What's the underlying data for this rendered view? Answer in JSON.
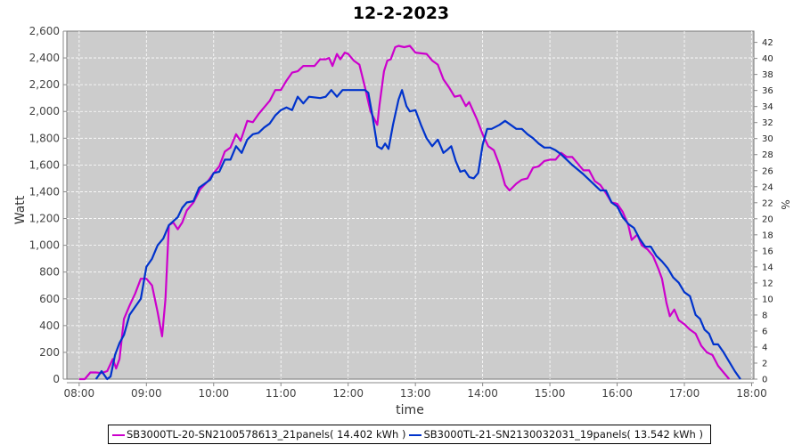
{
  "chart_data": {
    "type": "line",
    "title": "12-2-2023",
    "xlabel": "time",
    "ylabel": "Watt",
    "ylabel_right": "%",
    "xlim": [
      "07:49",
      "18:02"
    ],
    "ylim": [
      0,
      2600
    ],
    "ylim_right": [
      0,
      43.4
    ],
    "x_ticks": [
      "08:00",
      "09:00",
      "10:00",
      "11:00",
      "12:00",
      "13:00",
      "14:00",
      "15:00",
      "16:00",
      "17:00",
      "18:00"
    ],
    "y_ticks": [
      "0",
      "200",
      "400",
      "600",
      "800",
      "1,000",
      "1,200",
      "1,400",
      "1,600",
      "1,800",
      "2,000",
      "2,200",
      "2,400",
      "2,600"
    ],
    "y_ticks_right": [
      "0",
      "2",
      "4",
      "6",
      "8",
      "10",
      "12",
      "14",
      "16",
      "18",
      "20",
      "22",
      "24",
      "26",
      "28",
      "30",
      "32",
      "34",
      "36",
      "38",
      "40",
      "42"
    ],
    "grid": true,
    "background": "#cccccc",
    "legend_position": "bottom",
    "series": [
      {
        "name": "SB3000TL-20-SN2100578613_21panels( 14.402 kWh )",
        "color": "#cc00cc",
        "points": [
          [
            "08:00",
            0
          ],
          [
            "08:05",
            0
          ],
          [
            "08:10",
            50
          ],
          [
            "08:15",
            50
          ],
          [
            "08:20",
            45
          ],
          [
            "08:25",
            60
          ],
          [
            "08:30",
            150
          ],
          [
            "08:33",
            80
          ],
          [
            "08:36",
            150
          ],
          [
            "08:40",
            450
          ],
          [
            "08:45",
            550
          ],
          [
            "08:50",
            640
          ],
          [
            "08:55",
            750
          ],
          [
            "09:00",
            750
          ],
          [
            "09:05",
            700
          ],
          [
            "09:10",
            500
          ],
          [
            "09:14",
            320
          ],
          [
            "09:17",
            600
          ],
          [
            "09:20",
            1150
          ],
          [
            "09:24",
            1170
          ],
          [
            "09:28",
            1120
          ],
          [
            "09:32",
            1170
          ],
          [
            "09:36",
            1260
          ],
          [
            "09:42",
            1320
          ],
          [
            "09:48",
            1420
          ],
          [
            "09:55",
            1480
          ],
          [
            "10:00",
            1540
          ],
          [
            "10:05",
            1590
          ],
          [
            "10:10",
            1700
          ],
          [
            "10:15",
            1730
          ],
          [
            "10:20",
            1830
          ],
          [
            "10:24",
            1780
          ],
          [
            "10:30",
            1930
          ],
          [
            "10:35",
            1920
          ],
          [
            "10:40",
            1980
          ],
          [
            "10:45",
            2030
          ],
          [
            "10:50",
            2080
          ],
          [
            "10:55",
            2160
          ],
          [
            "11:00",
            2160
          ],
          [
            "11:05",
            2230
          ],
          [
            "11:10",
            2290
          ],
          [
            "11:15",
            2300
          ],
          [
            "11:20",
            2340
          ],
          [
            "11:30",
            2340
          ],
          [
            "11:35",
            2390
          ],
          [
            "11:40",
            2390
          ],
          [
            "11:43",
            2400
          ],
          [
            "11:46",
            2340
          ],
          [
            "11:50",
            2430
          ],
          [
            "11:53",
            2390
          ],
          [
            "11:57",
            2440
          ],
          [
            "12:00",
            2430
          ],
          [
            "12:05",
            2380
          ],
          [
            "12:10",
            2350
          ],
          [
            "12:15",
            2180
          ],
          [
            "12:20",
            2000
          ],
          [
            "12:23",
            1950
          ],
          [
            "12:26",
            1900
          ],
          [
            "12:28",
            2050
          ],
          [
            "12:32",
            2300
          ],
          [
            "12:35",
            2380
          ],
          [
            "12:38",
            2390
          ],
          [
            "12:42",
            2480
          ],
          [
            "12:45",
            2490
          ],
          [
            "12:50",
            2480
          ],
          [
            "12:55",
            2490
          ],
          [
            "13:00",
            2440
          ],
          [
            "13:10",
            2430
          ],
          [
            "13:15",
            2380
          ],
          [
            "13:20",
            2350
          ],
          [
            "13:25",
            2240
          ],
          [
            "13:30",
            2180
          ],
          [
            "13:35",
            2110
          ],
          [
            "13:40",
            2120
          ],
          [
            "13:45",
            2040
          ],
          [
            "13:48",
            2070
          ],
          [
            "13:55",
            1940
          ],
          [
            "14:00",
            1830
          ],
          [
            "14:05",
            1740
          ],
          [
            "14:10",
            1710
          ],
          [
            "14:15",
            1600
          ],
          [
            "14:20",
            1450
          ],
          [
            "14:24",
            1410
          ],
          [
            "14:30",
            1460
          ],
          [
            "14:35",
            1490
          ],
          [
            "14:40",
            1500
          ],
          [
            "14:45",
            1580
          ],
          [
            "14:50",
            1590
          ],
          [
            "14:55",
            1630
          ],
          [
            "15:00",
            1640
          ],
          [
            "15:05",
            1640
          ],
          [
            "15:10",
            1690
          ],
          [
            "15:15",
            1660
          ],
          [
            "15:20",
            1660
          ],
          [
            "15:25",
            1610
          ],
          [
            "15:30",
            1560
          ],
          [
            "15:35",
            1560
          ],
          [
            "15:40",
            1480
          ],
          [
            "15:45",
            1450
          ],
          [
            "15:50",
            1390
          ],
          [
            "15:55",
            1320
          ],
          [
            "16:00",
            1310
          ],
          [
            "16:05",
            1250
          ],
          [
            "16:10",
            1150
          ],
          [
            "16:13",
            1040
          ],
          [
            "16:18",
            1080
          ],
          [
            "16:22",
            1000
          ],
          [
            "16:27",
            970
          ],
          [
            "16:32",
            920
          ],
          [
            "16:37",
            820
          ],
          [
            "16:40",
            750
          ],
          [
            "16:44",
            570
          ],
          [
            "16:47",
            470
          ],
          [
            "16:51",
            520
          ],
          [
            "16:55",
            440
          ],
          [
            "17:00",
            410
          ],
          [
            "17:05",
            370
          ],
          [
            "17:10",
            340
          ],
          [
            "17:15",
            250
          ],
          [
            "17:20",
            200
          ],
          [
            "17:25",
            180
          ],
          [
            "17:30",
            100
          ],
          [
            "17:35",
            50
          ],
          [
            "17:40",
            0
          ]
        ]
      },
      {
        "name": "SB3000TL-21-SN2130032031_19panels( 13.542 kWh )",
        "color": "#0033cc",
        "points": [
          [
            "08:15",
            0
          ],
          [
            "08:20",
            60
          ],
          [
            "08:25",
            0
          ],
          [
            "08:28",
            20
          ],
          [
            "08:32",
            180
          ],
          [
            "08:36",
            270
          ],
          [
            "08:40",
            330
          ],
          [
            "08:45",
            480
          ],
          [
            "08:50",
            540
          ],
          [
            "08:55",
            600
          ],
          [
            "09:00",
            840
          ],
          [
            "09:05",
            900
          ],
          [
            "09:10",
            1000
          ],
          [
            "09:15",
            1050
          ],
          [
            "09:20",
            1150
          ],
          [
            "09:24",
            1180
          ],
          [
            "09:28",
            1210
          ],
          [
            "09:32",
            1280
          ],
          [
            "09:36",
            1320
          ],
          [
            "09:42",
            1330
          ],
          [
            "09:47",
            1430
          ],
          [
            "09:52",
            1460
          ],
          [
            "09:57",
            1490
          ],
          [
            "10:00",
            1540
          ],
          [
            "10:05",
            1550
          ],
          [
            "10:10",
            1640
          ],
          [
            "10:15",
            1640
          ],
          [
            "10:20",
            1740
          ],
          [
            "10:25",
            1690
          ],
          [
            "10:30",
            1790
          ],
          [
            "10:35",
            1830
          ],
          [
            "10:40",
            1840
          ],
          [
            "10:45",
            1880
          ],
          [
            "10:50",
            1910
          ],
          [
            "10:55",
            1970
          ],
          [
            "11:00",
            2010
          ],
          [
            "11:05",
            2030
          ],
          [
            "11:10",
            2010
          ],
          [
            "11:15",
            2110
          ],
          [
            "11:20",
            2060
          ],
          [
            "11:25",
            2110
          ],
          [
            "11:35",
            2100
          ],
          [
            "11:40",
            2110
          ],
          [
            "11:45",
            2160
          ],
          [
            "11:50",
            2110
          ],
          [
            "11:55",
            2160
          ],
          [
            "12:15",
            2160
          ],
          [
            "12:18",
            2140
          ],
          [
            "12:22",
            1950
          ],
          [
            "12:26",
            1740
          ],
          [
            "12:30",
            1720
          ],
          [
            "12:33",
            1760
          ],
          [
            "12:36",
            1720
          ],
          [
            "12:40",
            1900
          ],
          [
            "12:45",
            2090
          ],
          [
            "12:48",
            2160
          ],
          [
            "12:52",
            2040
          ],
          [
            "12:55",
            2000
          ],
          [
            "13:00",
            2010
          ],
          [
            "13:05",
            1900
          ],
          [
            "13:10",
            1800
          ],
          [
            "13:15",
            1740
          ],
          [
            "13:20",
            1790
          ],
          [
            "13:25",
            1690
          ],
          [
            "13:28",
            1710
          ],
          [
            "13:32",
            1740
          ],
          [
            "13:36",
            1630
          ],
          [
            "13:40",
            1550
          ],
          [
            "13:44",
            1560
          ],
          [
            "13:48",
            1510
          ],
          [
            "13:52",
            1500
          ],
          [
            "13:56",
            1540
          ],
          [
            "14:00",
            1750
          ],
          [
            "14:04",
            1870
          ],
          [
            "14:08",
            1870
          ],
          [
            "14:15",
            1900
          ],
          [
            "14:20",
            1930
          ],
          [
            "14:25",
            1900
          ],
          [
            "14:30",
            1870
          ],
          [
            "14:35",
            1870
          ],
          [
            "14:40",
            1830
          ],
          [
            "14:45",
            1800
          ],
          [
            "14:50",
            1760
          ],
          [
            "14:55",
            1730
          ],
          [
            "15:00",
            1730
          ],
          [
            "15:05",
            1710
          ],
          [
            "15:10",
            1680
          ],
          [
            "15:20",
            1600
          ],
          [
            "15:30",
            1530
          ],
          [
            "15:40",
            1450
          ],
          [
            "15:45",
            1410
          ],
          [
            "15:50",
            1410
          ],
          [
            "15:55",
            1320
          ],
          [
            "16:00",
            1290
          ],
          [
            "16:05",
            1210
          ],
          [
            "16:10",
            1160
          ],
          [
            "16:15",
            1130
          ],
          [
            "16:20",
            1050
          ],
          [
            "16:25",
            990
          ],
          [
            "16:30",
            990
          ],
          [
            "16:35",
            920
          ],
          [
            "16:40",
            880
          ],
          [
            "16:45",
            830
          ],
          [
            "16:50",
            760
          ],
          [
            "16:55",
            720
          ],
          [
            "17:00",
            650
          ],
          [
            "17:05",
            620
          ],
          [
            "17:10",
            480
          ],
          [
            "17:14",
            450
          ],
          [
            "17:18",
            370
          ],
          [
            "17:22",
            340
          ],
          [
            "17:26",
            260
          ],
          [
            "17:30",
            260
          ],
          [
            "17:35",
            200
          ],
          [
            "17:40",
            130
          ],
          [
            "17:45",
            60
          ],
          [
            "17:50",
            0
          ]
        ]
      }
    ]
  }
}
